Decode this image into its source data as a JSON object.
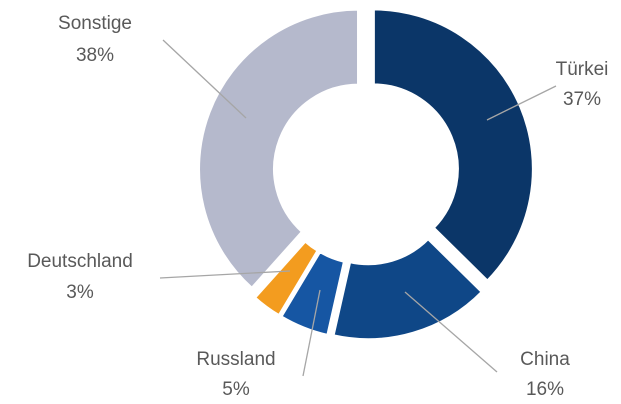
{
  "chart_data": {
    "type": "donut",
    "categories": [
      "Türkei",
      "China",
      "Russland",
      "Deutschland",
      "Sonstige"
    ],
    "values": [
      37,
      16,
      5,
      3,
      38
    ],
    "value_labels": [
      "37%",
      "16%",
      "5%",
      "3%",
      "38%"
    ],
    "colors": [
      "#0b3668",
      "#0f4787",
      "#1656a3",
      "#f39c1f",
      "#b5b9cc"
    ]
  }
}
